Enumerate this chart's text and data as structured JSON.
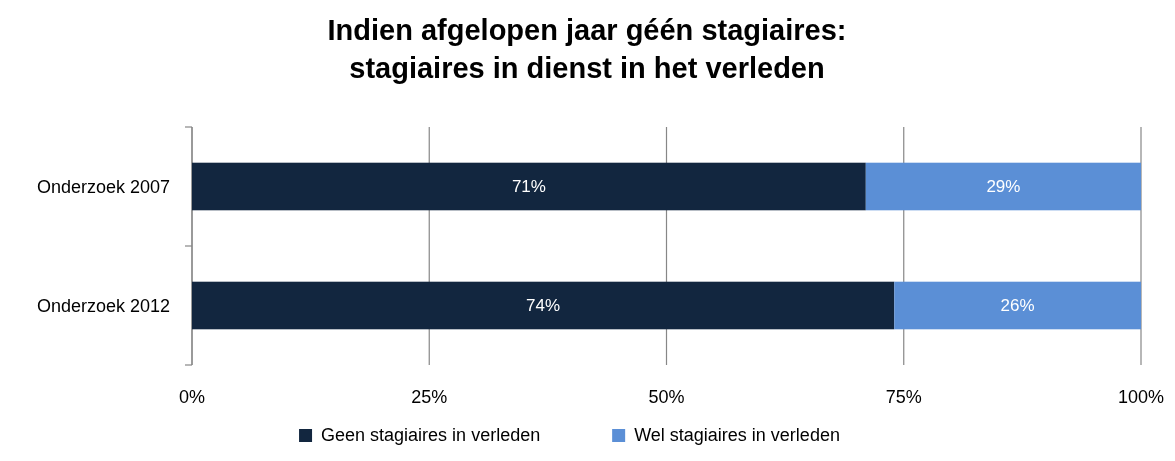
{
  "chart_data": {
    "type": "bar",
    "orientation": "horizontal",
    "stacked": true,
    "title": "Indien afgelopen jaar géén stagiaires:\nstagiaires in dienst in het verleden",
    "categories": [
      "Onderzoek 2007",
      "Onderzoek 2012"
    ],
    "series": [
      {
        "name": "Geen stagiaires in verleden",
        "color": "#12263f",
        "values": [
          71,
          74
        ],
        "value_labels": [
          "71%",
          "74%"
        ]
      },
      {
        "name": "Wel stagiaires in verleden",
        "color": "#5b8fd6",
        "values": [
          29,
          26
        ],
        "value_labels": [
          "29%",
          "26%"
        ]
      }
    ],
    "xlim": [
      0,
      100
    ],
    "xticks": [
      {
        "value": 0,
        "label": "0%"
      },
      {
        "value": 25,
        "label": "25%"
      },
      {
        "value": 50,
        "label": "50%"
      },
      {
        "value": 75,
        "label": "75%"
      },
      {
        "value": 100,
        "label": "100%"
      }
    ],
    "grid": "x",
    "legend": "bottom"
  }
}
